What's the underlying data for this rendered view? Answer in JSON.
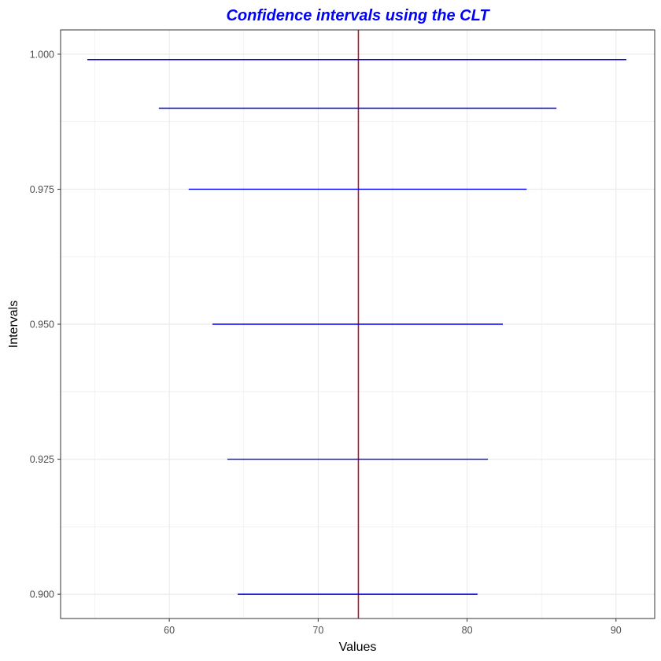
{
  "chart_data": {
    "type": "errorbar",
    "title": "Confidence intervals using the CLT",
    "xlabel": "Values",
    "ylabel": "Intervals",
    "xlim": [
      52.7,
      92.6
    ],
    "ylim": [
      0.8955,
      1.0045
    ],
    "x_ticks": [
      60,
      70,
      80,
      90
    ],
    "x_tick_labels": [
      "60",
      "70",
      "80",
      "90"
    ],
    "x_minor_ticks": [
      55,
      65,
      75,
      85
    ],
    "y_ticks": [
      0.9,
      0.925,
      0.95,
      0.975,
      1.0
    ],
    "y_tick_labels": [
      "0.900",
      "0.925",
      "0.950",
      "0.975",
      "1.000"
    ],
    "y_minor_ticks": [
      0.9125,
      0.9375,
      0.9625,
      0.9875
    ],
    "grid": true,
    "reference_line": {
      "x": 72.7,
      "color": "#b2182b"
    },
    "intervals": [
      {
        "level": 0.9,
        "lower": 64.6,
        "upper": 80.7
      },
      {
        "level": 0.925,
        "lower": 63.9,
        "upper": 81.4
      },
      {
        "level": 0.95,
        "lower": 62.9,
        "upper": 82.4
      },
      {
        "level": 0.975,
        "lower": 61.3,
        "upper": 84.0
      },
      {
        "level": 0.99,
        "lower": 59.3,
        "upper": 86.0
      },
      {
        "level": 0.999,
        "lower": 54.5,
        "upper": 90.7
      }
    ],
    "colors": {
      "interval": "#0000ff",
      "title": "#0000ff",
      "grid": "#ebebeb",
      "panel_border": "#333333",
      "tick_label": "#4d4d4d"
    }
  }
}
